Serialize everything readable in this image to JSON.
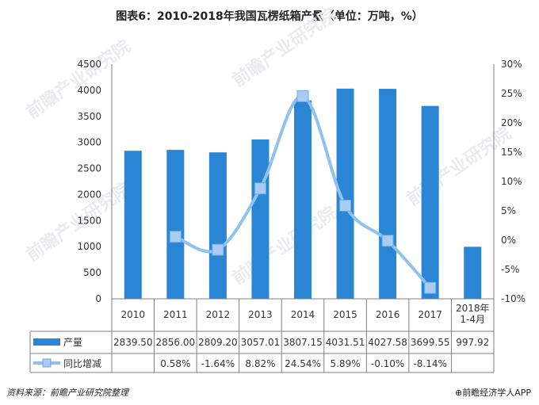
{
  "title": "图表6：2010-2018年我国瓦楞纸箱产量（单位：万吨，%）",
  "source": "资料来源：前瞻产业研究院整理",
  "brand": "⊕前瞻经济学人APP",
  "watermark": "前瞻产业研究院",
  "colors": {
    "bar": "#2a86d4",
    "line": "#8fc2f0",
    "marker": "#a9cdf2",
    "table_border": "#7f7f7f"
  },
  "chart_data": {
    "type": "bar+line",
    "categories": [
      "2010",
      "2011",
      "2012",
      "2013",
      "2014",
      "2015",
      "2016",
      "2017",
      "2018年\n1-4月"
    ],
    "series": [
      {
        "name": "产量",
        "type": "bar",
        "axis": "left",
        "values": [
          2839.5,
          2856.0,
          2809.2,
          3057.01,
          3807.15,
          4031.51,
          4027.58,
          3699.55,
          997.92
        ],
        "labels": [
          "2839.50",
          "2856.00",
          "2809.20",
          "3057.01",
          "3807.15",
          "4031.51",
          "4027.58",
          "3699.55",
          "997.92"
        ]
      },
      {
        "name": "同比增减",
        "type": "line",
        "axis": "right",
        "values": [
          null,
          0.58,
          -1.64,
          8.82,
          24.54,
          5.89,
          -0.1,
          -8.14,
          null
        ],
        "labels": [
          "",
          "0.58%",
          "-1.64%",
          "8.82%",
          "24.54%",
          "5.89%",
          "-0.10%",
          "-8.14%",
          ""
        ]
      }
    ],
    "left_axis": {
      "min": 0,
      "max": 4500,
      "ticks": [
        "0",
        "500",
        "1000",
        "1500",
        "2000",
        "2500",
        "3000",
        "3500",
        "4000",
        "4500"
      ]
    },
    "right_axis": {
      "min": -10,
      "max": 30,
      "ticks": [
        "-10%",
        "-5%",
        "0%",
        "5%",
        "10%",
        "15%",
        "20%",
        "25%",
        "30%"
      ]
    },
    "grid": false,
    "legend": "data-table"
  }
}
